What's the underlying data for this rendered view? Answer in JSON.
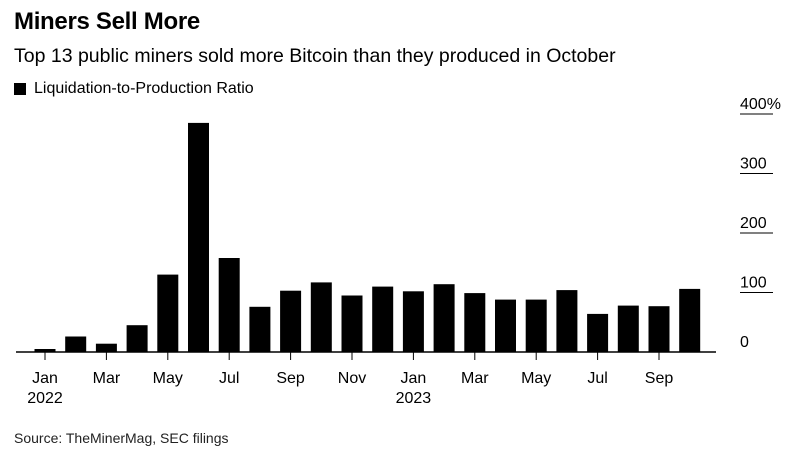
{
  "header": {
    "title": "Miners Sell More",
    "subtitle": "Top 13 public miners sold more Bitcoin than they produced in October"
  },
  "footer": {
    "source": "Source: TheMinerMag, SEC filings"
  },
  "colors": {
    "bar": "#000000",
    "axis": "#000000"
  },
  "chart_data": {
    "type": "bar",
    "title": "Miners Sell More",
    "subtitle": "Top 13 public miners sold more Bitcoin than they produced in October",
    "legend": {
      "entries": [
        "Liquidation-to-Production Ratio"
      ],
      "position": "top-left"
    },
    "series": [
      {
        "name": "Liquidation-to-Production Ratio",
        "values": [
          5,
          26,
          14,
          45,
          130,
          385,
          158,
          76,
          103,
          117,
          95,
          110,
          102,
          114,
          99,
          88,
          88,
          104,
          64,
          78,
          77,
          106
        ]
      }
    ],
    "categories": [
      "2022-01",
      "2022-02",
      "2022-03",
      "2022-04",
      "2022-05",
      "2022-06",
      "2022-07",
      "2022-08",
      "2022-09",
      "2022-10",
      "2022-11",
      "2022-12",
      "2023-01",
      "2023-02",
      "2023-03",
      "2023-04",
      "2023-05",
      "2023-06",
      "2023-07",
      "2023-08",
      "2023-09",
      "2023-10"
    ],
    "x_ticks": [
      {
        "index": 0,
        "label": "Jan",
        "sublabel": "2022"
      },
      {
        "index": 2,
        "label": "Mar",
        "sublabel": ""
      },
      {
        "index": 4,
        "label": "May",
        "sublabel": ""
      },
      {
        "index": 6,
        "label": "Jul",
        "sublabel": ""
      },
      {
        "index": 8,
        "label": "Sep",
        "sublabel": ""
      },
      {
        "index": 10,
        "label": "Nov",
        "sublabel": ""
      },
      {
        "index": 12,
        "label": "Jan",
        "sublabel": "2023"
      },
      {
        "index": 14,
        "label": "Mar",
        "sublabel": ""
      },
      {
        "index": 16,
        "label": "May",
        "sublabel": ""
      },
      {
        "index": 18,
        "label": "Jul",
        "sublabel": ""
      },
      {
        "index": 20,
        "label": "Sep",
        "sublabel": ""
      }
    ],
    "y_ticks": [
      {
        "value": 0,
        "label": "0"
      },
      {
        "value": 100,
        "label": "100"
      },
      {
        "value": 200,
        "label": "200"
      },
      {
        "value": 300,
        "label": "300"
      },
      {
        "value": 400,
        "label": "400%"
      }
    ],
    "xlabel": "",
    "ylabel": "",
    "ylim": [
      0,
      400
    ],
    "y_axis_side": "right",
    "grid": false
  }
}
